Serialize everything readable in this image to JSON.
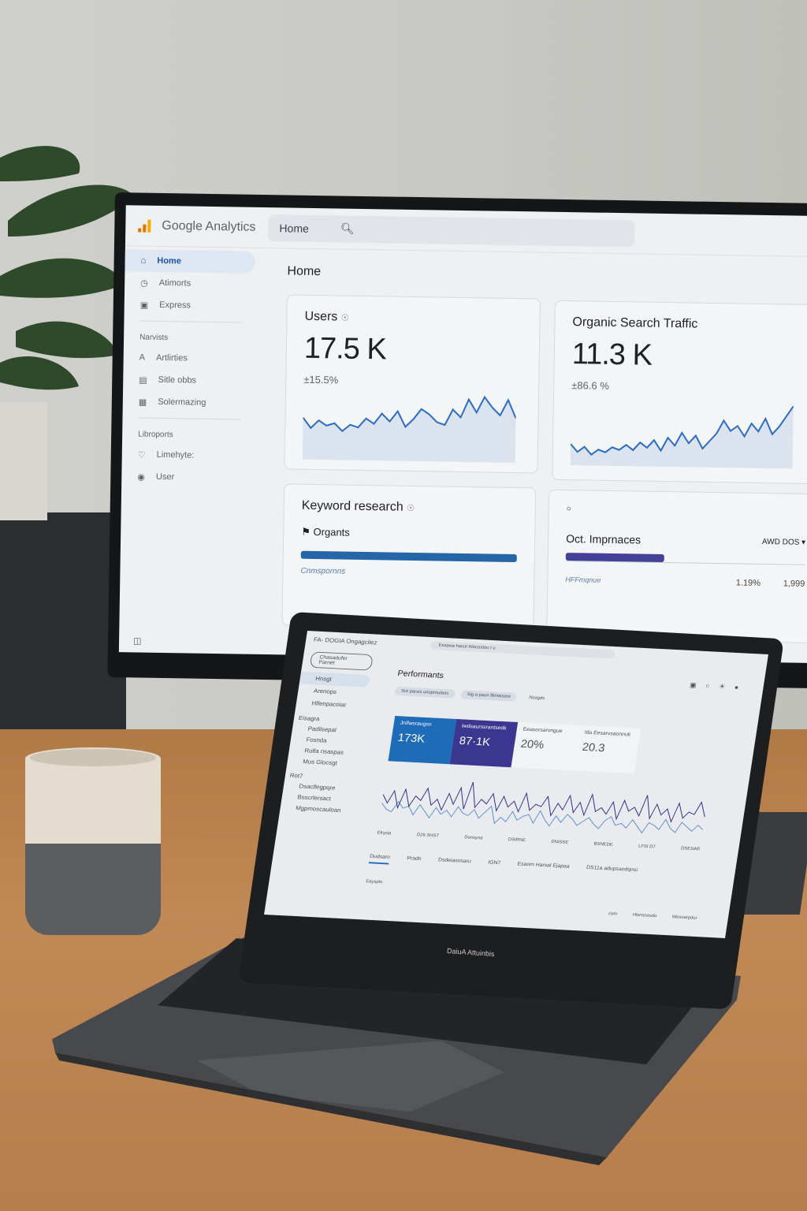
{
  "monitor": {
    "brand": "Google Analytics",
    "search_tab": "Home",
    "page_title": "Home",
    "sidebar": {
      "items": [
        {
          "label": "Home",
          "icon": "home-icon",
          "active": true
        },
        {
          "label": "Atimorts",
          "icon": "clock-icon"
        },
        {
          "label": "Express",
          "icon": "report-icon"
        }
      ],
      "section1": "Narvists",
      "items2": [
        {
          "label": "Artlirties",
          "icon": "letter-a-icon"
        },
        {
          "label": "Sitle obbs",
          "icon": "image-icon"
        },
        {
          "label": "Solermazing",
          "icon": "grid-icon"
        }
      ],
      "section2": "Libroports",
      "items3": [
        {
          "label": "Limehyte:",
          "icon": "heart-icon"
        },
        {
          "label": "User",
          "icon": "user-icon"
        }
      ]
    },
    "cards": {
      "users": {
        "title": "Users",
        "value": "17.5 K",
        "delta": "±15.5%",
        "series": [
          30,
          22,
          28,
          24,
          26,
          20,
          25,
          23,
          30,
          26,
          34,
          28,
          36,
          24,
          30,
          38,
          34,
          28,
          26,
          38,
          32,
          46,
          36,
          48,
          40,
          34,
          46,
          32
        ]
      },
      "organic": {
        "title": "Organic Search Traffic",
        "value": "11.3 K",
        "delta": "±86.6 %",
        "series": [
          14,
          8,
          12,
          6,
          10,
          8,
          12,
          10,
          14,
          10,
          16,
          12,
          18,
          10,
          20,
          14,
          24,
          16,
          22,
          12,
          18,
          24,
          34,
          26,
          30,
          22,
          32,
          26,
          36,
          24,
          30,
          38,
          46
        ]
      },
      "keyword": {
        "title": "Keyword research",
        "sub": "Organts",
        "bar_fill": 1.0,
        "link": "Cnmspornns"
      },
      "impressions": {
        "title": "Oct. Imprnaces",
        "dropdown": "AWD DOS",
        "bar_fill": 0.41,
        "link": "HFFmqnue",
        "pct": "1.19%",
        "count": "1,999"
      }
    },
    "colors": {
      "accent": "#1a73e8",
      "bar_blue": "#2466a8",
      "bar_purple": "#43409a",
      "line": "#2b6cc4"
    }
  },
  "laptop": {
    "title": "FA- DOGIA Ongagcilez",
    "search": "Essawa hacut Wocostou t u",
    "button": "Chasadufer Parnet",
    "page_title": "Performants",
    "filters": [
      "Sre parsis unoprnuieos",
      "Sig a paun Biniaisare",
      "Nsagds"
    ],
    "side_items": [
      "Hnsgt",
      "Arenops",
      "Hlfenpacoiar"
    ],
    "side_section": "Eisagra",
    "side_items2": [
      "Padilsepal",
      "Fosnda",
      "Rulfa nsaspas",
      "Mus Glocsgt"
    ],
    "side_section2": "Rot7",
    "side_items3": [
      "Dsaclfegpqre",
      "Bsscrlersact",
      "Mgpmoscauloan"
    ],
    "metrics": [
      {
        "label": "Jnifwsraugso",
        "value": "173K"
      },
      {
        "label": "Iwdsaurssrantsedk",
        "value": "87·1K"
      },
      {
        "label": "Eeasorsarvngue",
        "value": "20%"
      },
      {
        "label": "Ida Eesarvsaonnuli",
        "value": "20.3"
      }
    ],
    "x_ticks": [
      "Efrysia",
      "D26 SHST",
      "Donsyna",
      "DSIRNE",
      "DNISSE",
      "BSNEDE",
      "LFSI D7",
      "DSESAR"
    ],
    "tabs": [
      "Dudsaro",
      "Pradn",
      "Dsdeiasnsaru",
      "IGN7",
      "Esaom Harsal Ejapaa",
      "DS11a adupsaodqnsi"
    ],
    "footer": "Eaysplo",
    "bottom_links": [
      "com",
      "Hlsnsnasdo",
      "Wesoarpdur"
    ],
    "brand_label": "DaiuA Attuinbis",
    "series_a": [
      30,
      22,
      34,
      18,
      36,
      20,
      30,
      26,
      38,
      22,
      28,
      18,
      34,
      24,
      40,
      20,
      46,
      22,
      30,
      26,
      36,
      20,
      34,
      24,
      30,
      20,
      38,
      22,
      28,
      26,
      36,
      18,
      30,
      24,
      38,
      22,
      32,
      20,
      40,
      24,
      28,
      22,
      34,
      18,
      36,
      26,
      30,
      22,
      42,
      20,
      34,
      24,
      30,
      18,
      36,
      22,
      28,
      26,
      38,
      24
    ],
    "series_b": [
      22,
      16,
      14,
      24,
      18,
      20,
      12,
      22,
      16,
      10,
      20,
      14,
      18,
      12,
      22,
      16,
      14,
      20,
      12,
      18,
      24,
      8,
      14,
      10,
      20,
      12,
      16,
      18,
      10,
      22,
      14,
      8,
      18,
      12,
      20,
      16,
      10,
      14,
      18,
      12,
      8,
      16,
      20,
      12,
      14,
      10,
      18,
      12,
      6,
      16,
      14,
      10,
      20,
      12,
      8,
      18,
      14,
      10,
      16,
      12
    ]
  }
}
